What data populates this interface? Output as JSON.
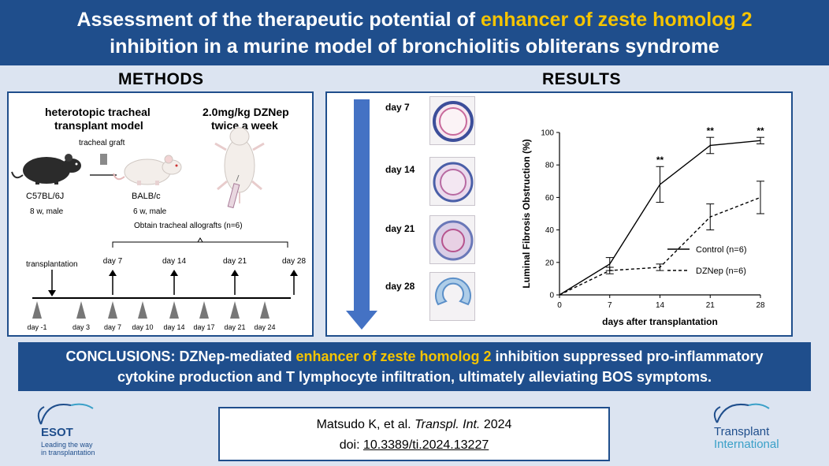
{
  "title": {
    "line1_pre": "Assessment of the therapeutic potential of ",
    "line1_highlight": "enhancer of zeste homolog 2",
    "line2": "inhibition in a murine model of bronchiolitis obliterans syndrome"
  },
  "methods": {
    "heading": "METHODS",
    "model_title_1": "heterotopic tracheal",
    "model_title_2": "transplant model",
    "dose_1": "2.0mg/kg DZNep",
    "dose_2": "twice a week",
    "graft_label": "tracheal graft",
    "donor_strain": "C57BL/6J",
    "donor_info": "8 w, male",
    "recipient_strain": "BALB/c",
    "recipient_info": "6 w, male",
    "obtain_label": "Obtain tracheal allografts (n=6)",
    "transplantation_label": "transplantation",
    "top_days": [
      "day 7",
      "day 14",
      "day 21",
      "day 28"
    ],
    "bottom_days": [
      "day -1",
      "day 3",
      "day 7",
      "day 10",
      "day 14",
      "day 17",
      "day 21",
      "day 24"
    ]
  },
  "results": {
    "heading": "RESULTS",
    "day_labels": [
      "day 7",
      "day 14",
      "day 21",
      "day 28"
    ]
  },
  "chart_data": {
    "type": "line",
    "xlabel": "days after transplantation",
    "ylabel": "Luminal Fibrosis Obstruction (%)",
    "x": [
      0,
      7,
      14,
      21,
      28
    ],
    "xticks": [
      "0",
      "7",
      "14",
      "21",
      "28"
    ],
    "yticks": [
      "0",
      "20",
      "40",
      "60",
      "80",
      "100"
    ],
    "ylim": [
      0,
      100
    ],
    "xlim": [
      0,
      28
    ],
    "series": [
      {
        "name": "Control (n=6)",
        "style": "solid",
        "values": [
          0,
          19,
          68,
          92,
          95
        ],
        "errors": [
          0,
          4,
          11,
          5,
          2
        ]
      },
      {
        "name": "DZNep (n=6)",
        "style": "dashed",
        "values": [
          0,
          15,
          17,
          48,
          60
        ],
        "errors": [
          0,
          2,
          2,
          8,
          10
        ]
      }
    ],
    "annotations": [
      {
        "x": 14,
        "y": 81,
        "text": "**"
      },
      {
        "x": 21,
        "y": 99,
        "text": "**"
      },
      {
        "x": 28,
        "y": 99,
        "text": "**"
      }
    ]
  },
  "conclusion": {
    "pre": "CONCLUSIONS: DZNep-mediated ",
    "highlight": "enhancer of zeste homolog 2",
    "post": " inhibition suppressed pro-inflammatory",
    "line2": "cytokine production and T lymphocyte infiltration, ultimately alleviating BOS symptoms."
  },
  "citation": {
    "authors": "Matsudo K, et al. ",
    "journal": "Transpl. Int.",
    "year": " 2024",
    "doi_label": "doi: ",
    "doi": "10.3389/ti.2024.13227"
  },
  "logos": {
    "esot_name": "ESOT",
    "esot_tagline_1": "Leading the way",
    "esot_tagline_2": "in transplantation",
    "ti_line1": "Transplant",
    "ti_line2": "International"
  },
  "colors": {
    "navy": "#1f4e8c",
    "highlight": "#f5c400",
    "arrow_blue": "#4472c4",
    "background": "#dce4f1",
    "teal": "#3aa0c8"
  }
}
